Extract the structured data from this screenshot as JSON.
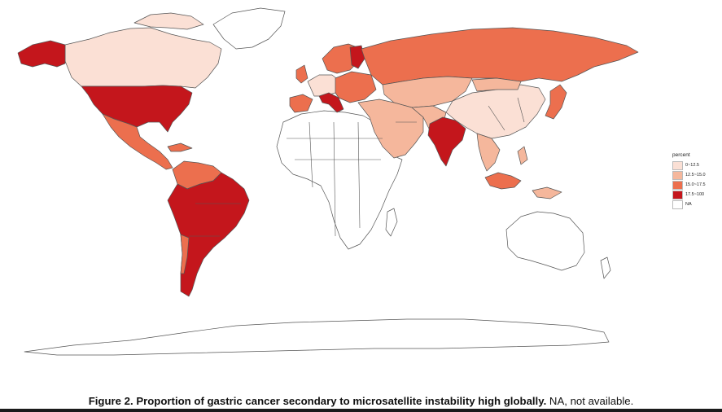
{
  "legend": {
    "title": "percent",
    "items": [
      {
        "label": "0~12.5",
        "color": "#fbe0d5"
      },
      {
        "label": "12.5~15.0",
        "color": "#f5b79c"
      },
      {
        "label": "15.0~17.5",
        "color": "#ec6f4e"
      },
      {
        "label": "17.5~100",
        "color": "#c4161c"
      },
      {
        "label": "NA",
        "color": "#ffffff"
      }
    ]
  },
  "caption": {
    "bold": "Figure 2. Proportion of gastric cancer secondary to microsatellite instability high globally.",
    "normal": "NA, not available."
  }
}
